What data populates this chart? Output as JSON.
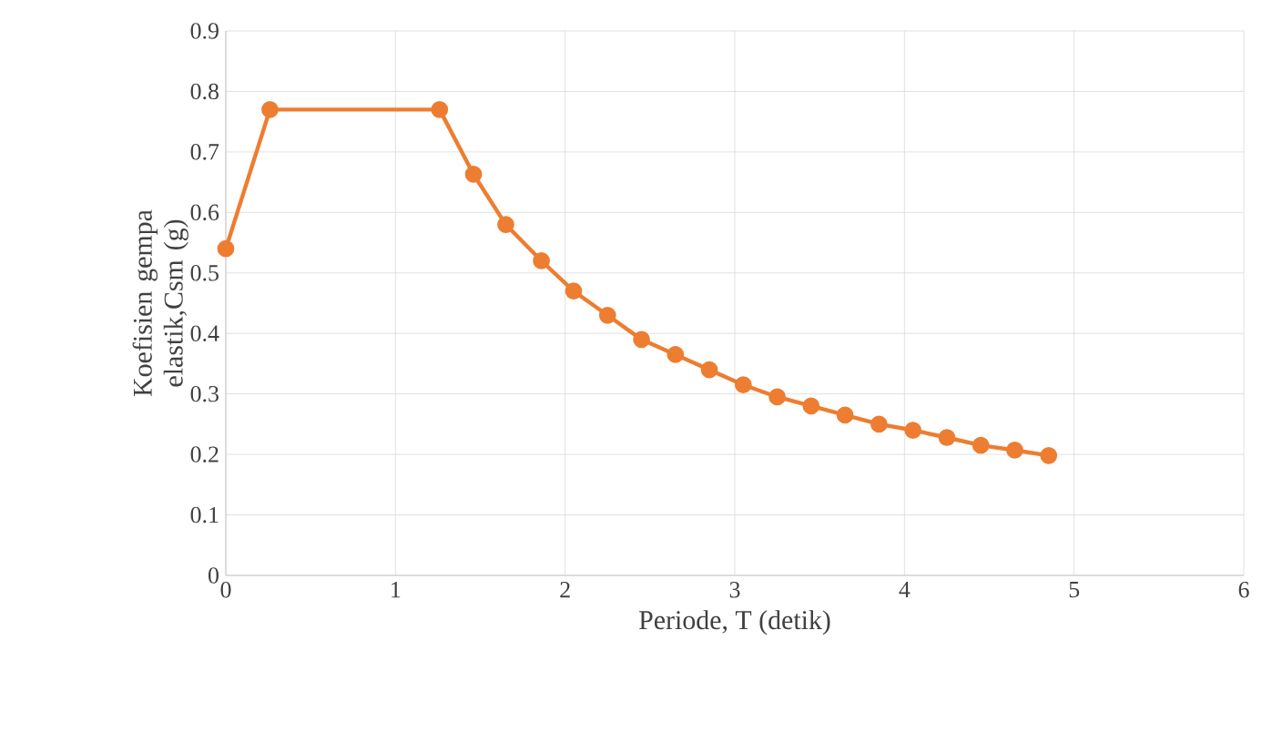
{
  "chart_data": {
    "type": "line",
    "xlabel": "Periode, T (detik)",
    "ylabel": "Koefisien  gempa elastik,Csm (g)",
    "series": [
      {
        "color": "#ed7d31",
        "x": [
          0,
          0.26,
          1.26,
          1.46,
          1.65,
          1.86,
          2.05,
          2.25,
          2.45,
          2.65,
          2.85,
          3.05,
          3.25,
          3.45,
          3.65,
          3.85,
          4.05,
          4.25,
          4.45,
          4.65,
          4.85
        ],
        "values": [
          0.54,
          0.77,
          0.77,
          0.663,
          0.58,
          0.52,
          0.47,
          0.43,
          0.39,
          0.365,
          0.34,
          0.315,
          0.295,
          0.28,
          0.265,
          0.25,
          0.24,
          0.228,
          0.215,
          0.207,
          0.198
        ]
      }
    ],
    "xlim": [
      0,
      6
    ],
    "xticks": [
      0,
      1,
      2,
      3,
      4,
      5,
      6
    ],
    "ylim": [
      0,
      0.9
    ],
    "yticks": [
      0,
      0.1,
      0.2,
      0.3,
      0.4,
      0.5,
      0.6,
      0.7,
      0.8,
      0.9
    ],
    "grid": true,
    "marker": "circle",
    "line_style": "solid"
  }
}
